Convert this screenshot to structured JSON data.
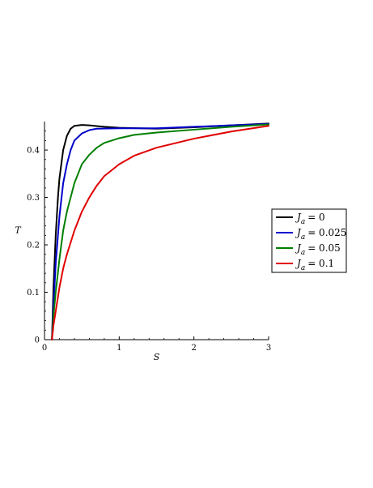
{
  "chart_data": {
    "type": "line",
    "xlabel": "S",
    "ylabel": "T",
    "xlim": [
      0,
      3
    ],
    "ylim": [
      0,
      0.46
    ],
    "xticks": [
      {
        "value": 0,
        "label": "0"
      },
      {
        "value": 1,
        "label": "1"
      },
      {
        "value": 2,
        "label": "2"
      },
      {
        "value": 3,
        "label": "3"
      }
    ],
    "yticks": [
      {
        "value": 0,
        "label": "0"
      },
      {
        "value": 0.1,
        "label": "0.1"
      },
      {
        "value": 0.2,
        "label": "0.2"
      },
      {
        "value": 0.3,
        "label": "0.3"
      },
      {
        "value": 0.4,
        "label": "0.4"
      }
    ],
    "legend_position": "right",
    "grid": false,
    "series": [
      {
        "name_symbol": "J",
        "name_subscript": "a",
        "name_value": "= 0",
        "color": "#000000",
        "points": [
          [
            0.1,
            0
          ],
          [
            0.12,
            0.11
          ],
          [
            0.15,
            0.22
          ],
          [
            0.18,
            0.3
          ],
          [
            0.2,
            0.34
          ],
          [
            0.25,
            0.4
          ],
          [
            0.3,
            0.43
          ],
          [
            0.35,
            0.445
          ],
          [
            0.4,
            0.451
          ],
          [
            0.5,
            0.453
          ],
          [
            0.6,
            0.452
          ],
          [
            0.8,
            0.449
          ],
          [
            1,
            0.447
          ],
          [
            1.5,
            0.445
          ],
          [
            2,
            0.448
          ],
          [
            2.5,
            0.452
          ],
          [
            3,
            0.456
          ]
        ]
      },
      {
        "name_symbol": "J",
        "name_subscript": "a",
        "name_value": "= 0.025",
        "color": "#0000cc",
        "points": [
          [
            0.1,
            0
          ],
          [
            0.12,
            0.07
          ],
          [
            0.15,
            0.16
          ],
          [
            0.2,
            0.26
          ],
          [
            0.25,
            0.33
          ],
          [
            0.3,
            0.37
          ],
          [
            0.35,
            0.4
          ],
          [
            0.4,
            0.42
          ],
          [
            0.5,
            0.435
          ],
          [
            0.6,
            0.442
          ],
          [
            0.7,
            0.445
          ],
          [
            1,
            0.446
          ],
          [
            1.5,
            0.446
          ],
          [
            2,
            0.449
          ],
          [
            2.5,
            0.452
          ],
          [
            3,
            0.455
          ]
        ]
      },
      {
        "name_symbol": "J",
        "name_subscript": "a",
        "name_value": "= 0.05",
        "color": "#007f00",
        "points": [
          [
            0.1,
            0
          ],
          [
            0.12,
            0.05
          ],
          [
            0.15,
            0.1
          ],
          [
            0.2,
            0.17
          ],
          [
            0.25,
            0.23
          ],
          [
            0.3,
            0.27
          ],
          [
            0.4,
            0.33
          ],
          [
            0.5,
            0.37
          ],
          [
            0.6,
            0.39
          ],
          [
            0.7,
            0.405
          ],
          [
            0.8,
            0.415
          ],
          [
            1,
            0.425
          ],
          [
            1.2,
            0.432
          ],
          [
            1.5,
            0.437
          ],
          [
            2,
            0.443
          ],
          [
            2.5,
            0.449
          ],
          [
            3,
            0.454
          ]
        ]
      },
      {
        "name_symbol": "J",
        "name_subscript": "a",
        "name_value": "= 0.1",
        "color": "#e00000",
        "points": [
          [
            0.1,
            0
          ],
          [
            0.12,
            0.03
          ],
          [
            0.15,
            0.06
          ],
          [
            0.2,
            0.11
          ],
          [
            0.25,
            0.15
          ],
          [
            0.3,
            0.18
          ],
          [
            0.4,
            0.23
          ],
          [
            0.5,
            0.27
          ],
          [
            0.6,
            0.3
          ],
          [
            0.7,
            0.325
          ],
          [
            0.8,
            0.345
          ],
          [
            1,
            0.37
          ],
          [
            1.2,
            0.388
          ],
          [
            1.5,
            0.405
          ],
          [
            2,
            0.424
          ],
          [
            2.5,
            0.439
          ],
          [
            3,
            0.451
          ]
        ]
      }
    ]
  }
}
